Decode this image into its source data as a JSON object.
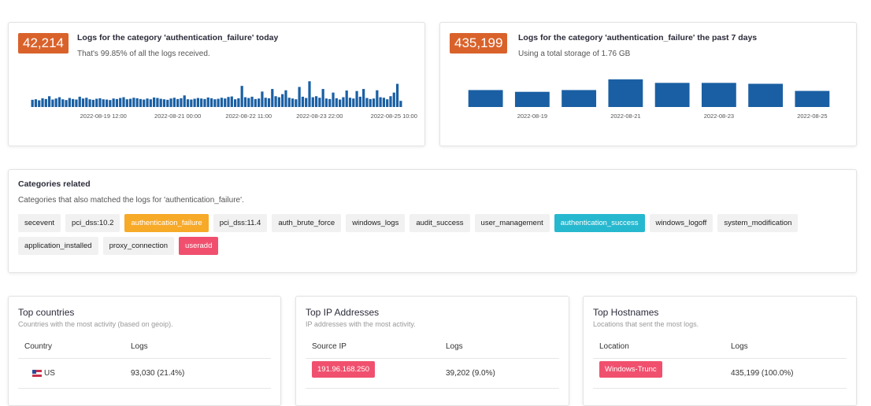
{
  "chart_data": [
    {
      "type": "bar",
      "badge": "42,214",
      "title": "Logs for the category 'authentication_failure' today",
      "subtitle": "That's 99.85% of all the logs received.",
      "color": "#1a5fa3",
      "ylim": [
        0,
        1100
      ],
      "categories": [
        null,
        null,
        null,
        null,
        null,
        null,
        null,
        null,
        null,
        null,
        null,
        null,
        null,
        null,
        null,
        null,
        null,
        null,
        null,
        null,
        null,
        "2022-08-19 12:00",
        null,
        null,
        null,
        null,
        null,
        null,
        null,
        null,
        null,
        null,
        null,
        null,
        null,
        null,
        null,
        null,
        null,
        null,
        null,
        null,
        null,
        "2022-08-21 00:00",
        null,
        null,
        null,
        null,
        null,
        null,
        null,
        null,
        null,
        null,
        null,
        null,
        null,
        null,
        null,
        null,
        null,
        null,
        null,
        null,
        "2022-08-22 11:00",
        null,
        null,
        null,
        null,
        null,
        null,
        null,
        null,
        null,
        null,
        null,
        null,
        null,
        null,
        null,
        null,
        null,
        null,
        null,
        null,
        "2022-08-23 22:00",
        null,
        null,
        null,
        null,
        null,
        null,
        null,
        null,
        null,
        null,
        null,
        null,
        null,
        null,
        null,
        null,
        null,
        null,
        null,
        null,
        null,
        "2022-08-25 10:00",
        null,
        null
      ],
      "values": [
        280,
        300,
        260,
        340,
        310,
        420,
        290,
        330,
        380,
        300,
        270,
        350,
        310,
        290,
        400,
        330,
        360,
        300,
        280,
        320,
        340,
        300,
        290,
        270,
        330,
        310,
        350,
        380,
        300,
        320,
        360,
        340,
        310,
        290,
        330,
        300,
        370,
        350,
        320,
        300,
        280,
        330,
        360,
        310,
        340,
        450,
        300,
        290,
        320,
        350,
        330,
        310,
        370,
        340,
        300,
        320,
        360,
        330,
        390,
        410,
        300,
        340,
        820,
        380,
        350,
        400,
        310,
        330,
        600,
        360,
        340,
        700,
        420,
        380,
        500,
        650,
        360,
        330,
        300,
        780,
        400,
        350,
        1000,
        380,
        420,
        360,
        700,
        330,
        310,
        560,
        340,
        290,
        380,
        640,
        360,
        330,
        620,
        400,
        700,
        350,
        310,
        330,
        650,
        380,
        360,
        300,
        420,
        560,
        900,
        240
      ]
    },
    {
      "type": "bar",
      "badge": "435,199",
      "title": "Logs for the category 'authentication_failure' the past 7 days",
      "subtitle": "Using a total storage of 1.76 GB",
      "color": "#1a5fa3",
      "ylim": [
        0,
        75000
      ],
      "categories": [
        null,
        "2022-08-19",
        null,
        "2022-08-21",
        null,
        "2022-08-23",
        null,
        "2022-08-25"
      ],
      "values": [
        44900,
        40200,
        44900,
        73300,
        63900,
        63900,
        61500,
        42600
      ]
    }
  ],
  "categories_related": {
    "title": "Categories related",
    "subtitle": "Categories that also matched the logs for 'authentication_failure'.",
    "tags": [
      {
        "label": "secevent"
      },
      {
        "label": "pci_dss:10.2"
      },
      {
        "label": "authentication_failure",
        "color": "#f7a928"
      },
      {
        "label": "pci_dss:11.4"
      },
      {
        "label": "auth_brute_force"
      },
      {
        "label": "windows_logs"
      },
      {
        "label": "audit_success"
      },
      {
        "label": "user_management"
      },
      {
        "label": "authentication_success",
        "color": "#26b8cf"
      },
      {
        "label": "windows_logoff"
      },
      {
        "label": "system_modification"
      },
      {
        "label": "application_installed"
      },
      {
        "label": "proxy_connection"
      },
      {
        "label": "useradd",
        "color": "#f0506e"
      }
    ]
  },
  "tables": [
    {
      "title": "Top countries",
      "subtitle": "Countries with the most activity (based on geoip).",
      "columns": [
        "Country",
        "Logs"
      ],
      "rows": [
        [
          "US",
          "93,030 (21.4%)"
        ]
      ]
    },
    {
      "title": "Top IP Addresses",
      "subtitle": "IP addresses with the most activity.",
      "columns": [
        "Source IP",
        "Logs"
      ],
      "rows": [
        [
          "191.96.168.250",
          "39,202 (9.0%)"
        ]
      ]
    },
    {
      "title": "Top Hostnames",
      "subtitle": "Locations that sent the most logs.",
      "columns": [
        "Location",
        "Logs"
      ],
      "rows": [
        [
          "Windows-Trunc",
          "435,199 (100.0%)"
        ]
      ]
    }
  ]
}
